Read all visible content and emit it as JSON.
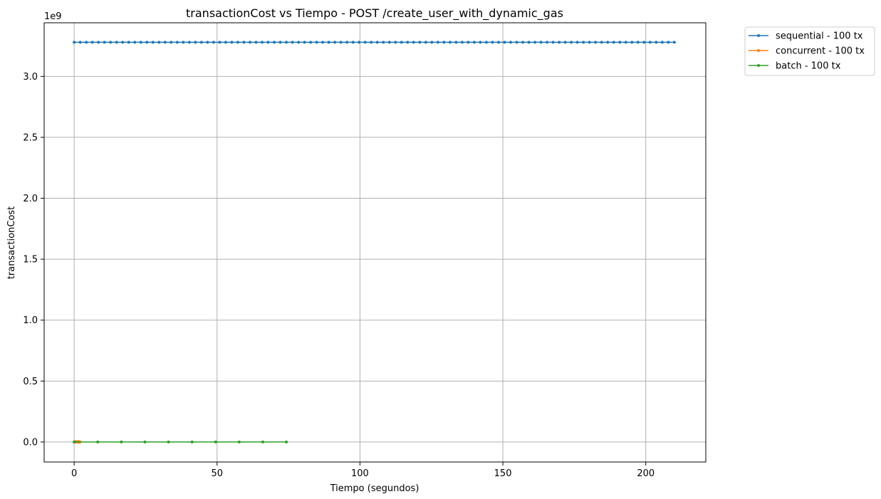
{
  "chart_data": {
    "type": "line",
    "title": "transactionCost vs Tiempo - POST /create_user_with_dynamic_gas",
    "xlabel": "Tiempo (segundos)",
    "ylabel": "transactionCost",
    "y_offset_label": "1e9",
    "xlim": [
      -10.5,
      221
    ],
    "ylim": [
      -0.164,
      3.44
    ],
    "x_ticks": [
      0,
      50,
      100,
      150,
      200
    ],
    "x_tick_labels": [
      "0",
      "50",
      "100",
      "150",
      "200"
    ],
    "y_ticks": [
      0,
      0.5,
      1.0,
      1.5,
      2.0,
      2.5,
      3.0
    ],
    "y_tick_labels": [
      "0.0",
      "0.5",
      "1.0",
      "1.5",
      "2.0",
      "2.5",
      "3.0"
    ],
    "grid": true,
    "legend_position": "outside-top-right",
    "series": [
      {
        "name": "sequential - 100 tx",
        "color": "#1f77b4",
        "x_start": 0,
        "x_end": 210,
        "point_count": 100,
        "value": 3.28
      },
      {
        "name": "concurrent - 100 tx",
        "color": "#ff7f0e",
        "x_start": 0,
        "x_end": 2,
        "point_count": 100,
        "value": 0.0
      },
      {
        "name": "batch - 100 tx",
        "color": "#2ca02c",
        "x": [
          0,
          8.25,
          16.5,
          24.75,
          33,
          41.25,
          49.5,
          57.75,
          66,
          74.25
        ],
        "value": 0.0
      }
    ]
  }
}
